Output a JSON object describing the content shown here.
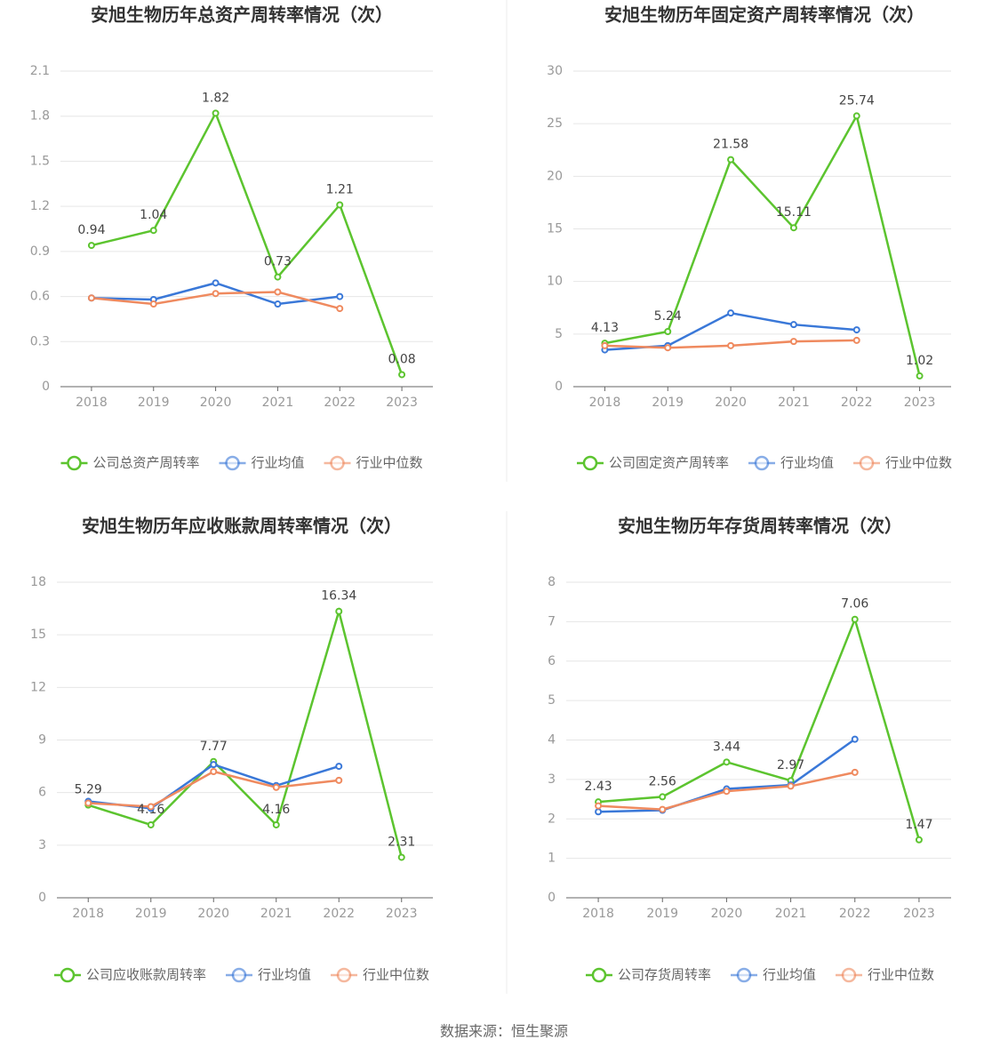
{
  "chart_data": [
    {
      "type": "line",
      "title": "安旭生物历年总资产周转率情况（次）",
      "categories": [
        "2018",
        "2019",
        "2020",
        "2021",
        "2022",
        "2023"
      ],
      "series": [
        {
          "name": "公司总资产周转率",
          "color": "#5cc42f",
          "values": [
            0.94,
            1.04,
            1.82,
            0.73,
            1.21,
            0.08
          ]
        },
        {
          "name": "行业均值",
          "color": "#3a78d8",
          "values": [
            0.59,
            0.58,
            0.69,
            0.55,
            0.6,
            null
          ]
        },
        {
          "name": "行业中位数",
          "color": "#ef8a5f",
          "values": [
            0.59,
            0.55,
            0.62,
            0.63,
            0.52,
            null
          ]
        }
      ],
      "ylim": [
        0,
        2.1
      ],
      "yticks": [
        0,
        0.3,
        0.6,
        0.9,
        1.2,
        1.5,
        1.8,
        2.1
      ],
      "grid": true
    },
    {
      "type": "line",
      "title": "安旭生物历年固定资产周转率情况（次）",
      "categories": [
        "2018",
        "2019",
        "2020",
        "2021",
        "2022",
        "2023"
      ],
      "series": [
        {
          "name": "公司固定资产周转率",
          "color": "#5cc42f",
          "values": [
            4.13,
            5.24,
            21.58,
            15.11,
            25.74,
            1.02
          ]
        },
        {
          "name": "行业均值",
          "color": "#3a78d8",
          "values": [
            3.5,
            3.9,
            7.0,
            5.9,
            5.4,
            null
          ]
        },
        {
          "name": "行业中位数",
          "color": "#ef8a5f",
          "values": [
            3.9,
            3.7,
            3.9,
            4.3,
            4.4,
            null
          ]
        }
      ],
      "ylim": [
        0,
        30
      ],
      "yticks": [
        0,
        5,
        10,
        15,
        20,
        25,
        30
      ],
      "grid": true
    },
    {
      "type": "line",
      "title": "安旭生物历年应收账款周转率情况（次）",
      "categories": [
        "2018",
        "2019",
        "2020",
        "2021",
        "2022",
        "2023"
      ],
      "series": [
        {
          "name": "公司应收账款周转率",
          "color": "#5cc42f",
          "values": [
            5.29,
            4.16,
            7.77,
            4.16,
            16.34,
            2.31
          ]
        },
        {
          "name": "行业均值",
          "color": "#3a78d8",
          "values": [
            5.5,
            5.1,
            7.6,
            6.4,
            7.5,
            null
          ]
        },
        {
          "name": "行业中位数",
          "color": "#ef8a5f",
          "values": [
            5.4,
            5.2,
            7.2,
            6.3,
            6.7,
            null
          ]
        }
      ],
      "ylim": [
        0,
        18
      ],
      "yticks": [
        0,
        3,
        6,
        9,
        12,
        15,
        18
      ],
      "grid": true
    },
    {
      "type": "line",
      "title": "安旭生物历年存货周转率情况（次）",
      "categories": [
        "2018",
        "2019",
        "2020",
        "2021",
        "2022",
        "2023"
      ],
      "series": [
        {
          "name": "公司存货周转率",
          "color": "#5cc42f",
          "values": [
            2.43,
            2.56,
            3.44,
            2.97,
            7.06,
            1.47
          ]
        },
        {
          "name": "行业均值",
          "color": "#3a78d8",
          "values": [
            2.18,
            2.22,
            2.76,
            2.86,
            4.02,
            null
          ]
        },
        {
          "name": "行业中位数",
          "color": "#ef8a5f",
          "values": [
            2.33,
            2.24,
            2.7,
            2.83,
            3.18,
            null
          ]
        }
      ],
      "ylim": [
        0,
        8
      ],
      "yticks": [
        0,
        1,
        2,
        3,
        4,
        5,
        6,
        7,
        8
      ],
      "grid": true
    }
  ],
  "source": "数据来源：恒生聚源"
}
